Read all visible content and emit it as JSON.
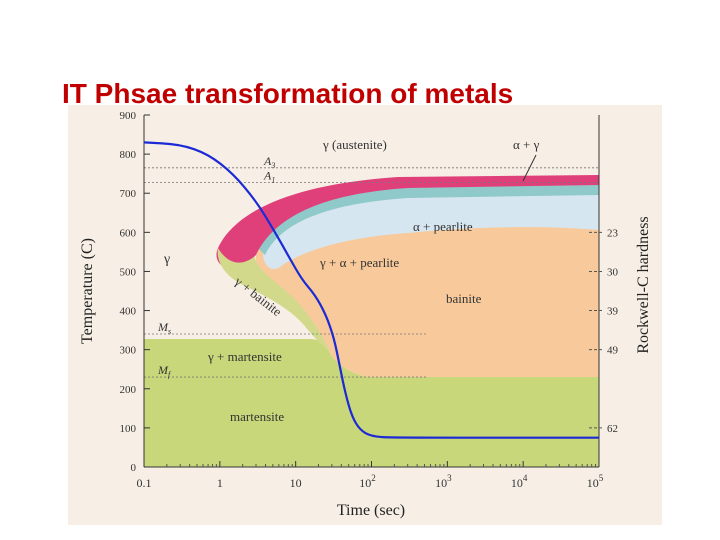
{
  "slide": {
    "title": "IT  Phsae transformation of metals"
  },
  "chart_data": {
    "type": "diagram",
    "title": "",
    "xlabel": "Time (sec)",
    "ylabel": "Temperature (C)",
    "right_label": "Rockwell-C hardness",
    "x_scale": "log",
    "x_ticks": [
      {
        "value": 0.1,
        "label": "0.1"
      },
      {
        "value": 1,
        "label": "1"
      },
      {
        "value": 10,
        "label": "10"
      },
      {
        "value": 100,
        "base": "10",
        "exp": "2"
      },
      {
        "value": 1000,
        "base": "10",
        "exp": "3"
      },
      {
        "value": 10000,
        "base": "10",
        "exp": "4"
      },
      {
        "value": 100000,
        "base": "10",
        "exp": "5"
      }
    ],
    "y_ticks": [
      0,
      100,
      200,
      300,
      400,
      500,
      600,
      700,
      800,
      900
    ],
    "ylim": [
      0,
      900
    ],
    "hardness_ticks": [
      {
        "temp": 600,
        "label": "23"
      },
      {
        "temp": 500,
        "label": "30"
      },
      {
        "temp": 400,
        "label": "39"
      },
      {
        "temp": 300,
        "label": "49"
      },
      {
        "temp": 100,
        "label": "62"
      }
    ],
    "temperature_lines": [
      {
        "name": "A3",
        "sub": "3",
        "base": "A",
        "temp": 765
      },
      {
        "name": "A1",
        "sub": "1",
        "base": "A",
        "temp": 727
      },
      {
        "name": "Ms",
        "sub": "s",
        "base": "M",
        "temp": 340
      },
      {
        "name": "Mf",
        "sub": "f",
        "base": "M",
        "temp": 230
      }
    ],
    "regions": {
      "austenite": "γ (austenite)",
      "alpha_gamma": "α + γ",
      "alpha_pearlite": "α + pearlite",
      "gamma_alpha_pearlite": "γ + α + pearlite",
      "bainite": "bainite",
      "gamma_bainite": "γ + bainite",
      "gamma": "γ",
      "gamma_martensite": "γ + martensite",
      "martensite": "martensite"
    },
    "cooling_curve": [
      [
        0.1,
        830
      ],
      [
        0.3,
        825
      ],
      [
        0.7,
        800
      ],
      [
        1.5,
        750
      ],
      [
        3,
        680
      ],
      [
        5,
        610
      ],
      [
        8,
        540
      ],
      [
        12,
        480
      ],
      [
        18,
        440
      ],
      [
        25,
        390
      ],
      [
        32,
        330
      ],
      [
        38,
        260
      ],
      [
        45,
        190
      ],
      [
        55,
        130
      ],
      [
        70,
        95
      ],
      [
        100,
        78
      ],
      [
        200,
        75
      ],
      [
        100000,
        75
      ]
    ],
    "colors": {
      "background": "#f7efe6",
      "pink_band": "#e0407a",
      "alpha_pearlite": "#8fc9c9",
      "gamma_alpha_pearlite": "#d6e6f0",
      "bainite": "#f8c99a",
      "martensite": "#c8d77a",
      "cooling_curve": "#1c2ad6",
      "title": "#c00000"
    }
  }
}
